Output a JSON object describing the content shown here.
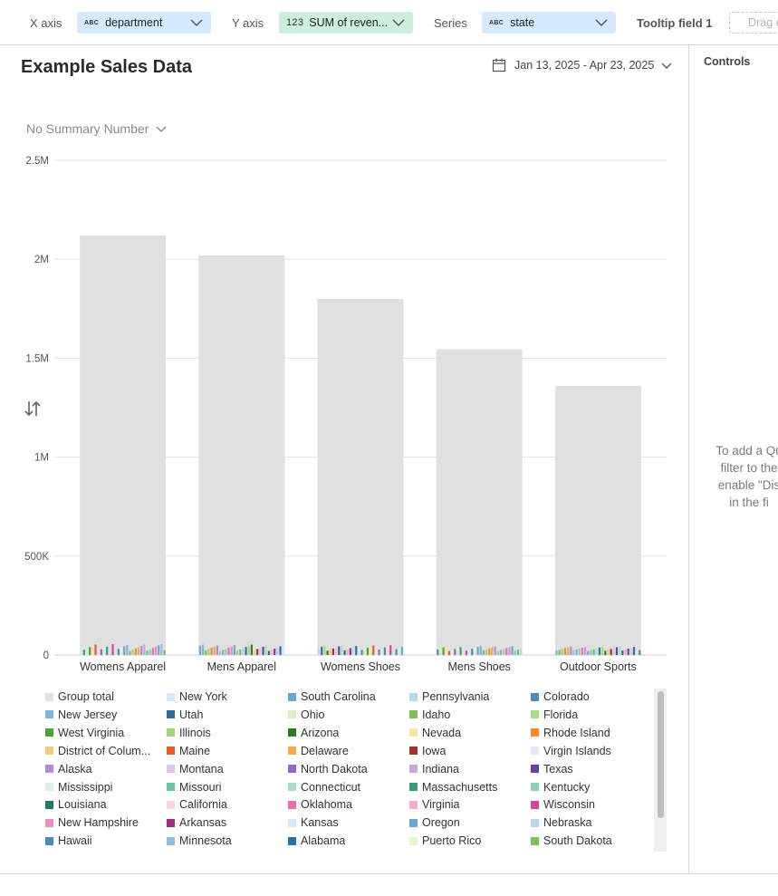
{
  "toolbar": {
    "x_axis_label": "X axis",
    "x_axis_field": "department",
    "x_axis_type": "ABC",
    "y_axis_label": "Y axis",
    "y_axis_field": "SUM of reven...",
    "y_axis_type": "123",
    "series_label": "Series",
    "series_field": "state",
    "series_type": "ABC",
    "tooltip_label": "Tooltip field 1",
    "tooltip_drop": "Drag c"
  },
  "chart_header": {
    "title": "Example Sales Data",
    "date_range": "Jan 13, 2025 - Apr 23, 2025",
    "summary": "No Summary Number"
  },
  "controls": {
    "title": "Controls",
    "message_lines": [
      "To add a Qu",
      "filter to the",
      "enable \"Dis",
      "in the fi"
    ]
  },
  "chart_data": {
    "type": "bar",
    "categories": [
      "Womens Apparel",
      "Mens Apparel",
      "Womens Shoes",
      "Mens Shoes",
      "Outdoor Sports"
    ],
    "series": [
      {
        "name": "Group total",
        "values": [
          2120000,
          2020000,
          1800000,
          1545000,
          1360000
        ]
      }
    ],
    "state_series_range": [
      20000,
      55000
    ],
    "ylim": [
      0,
      2500000
    ],
    "yticks": [
      {
        "value": 0,
        "label": "0"
      },
      {
        "value": 500000,
        "label": "500K"
      },
      {
        "value": 1000000,
        "label": "1M"
      },
      {
        "value": 1500000,
        "label": "1.5M"
      },
      {
        "value": 2000000,
        "label": "2M"
      },
      {
        "value": 2500000,
        "label": "2.5M"
      }
    ],
    "grid": true,
    "legend_placement": "bottom"
  },
  "legend": [
    {
      "name": "Group total",
      "color": "#e0e0e0"
    },
    {
      "name": "New York",
      "color": "#d6e9fb"
    },
    {
      "name": "South Carolina",
      "color": "#6aa8d4"
    },
    {
      "name": "Pennsylvania",
      "color": "#b5d8ef"
    },
    {
      "name": "Colorado",
      "color": "#4a8bb8"
    },
    {
      "name": "New Jersey",
      "color": "#7cb5de"
    },
    {
      "name": "Utah",
      "color": "#2f6ea3"
    },
    {
      "name": "Ohio",
      "color": "#d9f0c2"
    },
    {
      "name": "Idaho",
      "color": "#78c256"
    },
    {
      "name": "Florida",
      "color": "#a8db86"
    },
    {
      "name": "West Virginia",
      "color": "#4ea33a"
    },
    {
      "name": "Illinois",
      "color": "#a3d67c"
    },
    {
      "name": "Arizona",
      "color": "#2e7a22"
    },
    {
      "name": "Nevada",
      "color": "#fbe3a2"
    },
    {
      "name": "Rhode Island",
      "color": "#f58b2e"
    },
    {
      "name": "District of Colum...",
      "color": "#f7c97a"
    },
    {
      "name": "Maine",
      "color": "#e85a2c"
    },
    {
      "name": "Delaware",
      "color": "#f5a94e"
    },
    {
      "name": "Iowa",
      "color": "#a8312a"
    },
    {
      "name": "Virgin Islands",
      "color": "#efe3f6"
    },
    {
      "name": "Alaska",
      "color": "#b58bd0"
    },
    {
      "name": "Montana",
      "color": "#dcc6ec"
    },
    {
      "name": "North Dakota",
      "color": "#8b6cc1"
    },
    {
      "name": "Indiana",
      "color": "#c8a8dc"
    },
    {
      "name": "Texas",
      "color": "#6a3fa0"
    },
    {
      "name": "Mississippi",
      "color": "#d8f0e0"
    },
    {
      "name": "Missouri",
      "color": "#6dc4a4"
    },
    {
      "name": "Connecticut",
      "color": "#a9dec6"
    },
    {
      "name": "Massachusetts",
      "color": "#3c9a80"
    },
    {
      "name": "Kentucky",
      "color": "#8fd0b6"
    },
    {
      "name": "Louisiana",
      "color": "#1e7a63"
    },
    {
      "name": "California",
      "color": "#fbd6e2"
    },
    {
      "name": "Oklahoma",
      "color": "#e86fb0"
    },
    {
      "name": "Virginia",
      "color": "#f4a9cf"
    },
    {
      "name": "Wisconsin",
      "color": "#c84aa0"
    },
    {
      "name": "New Hampshire",
      "color": "#f08bc6"
    },
    {
      "name": "Arkansas",
      "color": "#a02a86"
    },
    {
      "name": "Kansas",
      "color": "#d6e9fb"
    },
    {
      "name": "Oregon",
      "color": "#6aa8d4"
    },
    {
      "name": "Nebraska",
      "color": "#b5d8ef"
    },
    {
      "name": "Hawaii",
      "color": "#4a8bb8"
    },
    {
      "name": "Minnesota",
      "color": "#8cc0e3"
    },
    {
      "name": "Alabama",
      "color": "#2f6ea3"
    },
    {
      "name": "Puerto Rico",
      "color": "#e4f5cf"
    },
    {
      "name": "South Dakota",
      "color": "#78c256"
    }
  ]
}
